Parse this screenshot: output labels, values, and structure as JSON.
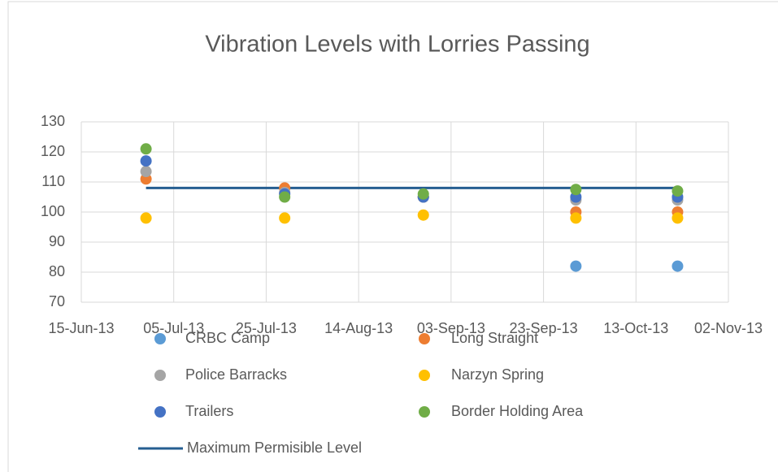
{
  "chart_data": {
    "type": "scatter",
    "title": "Vibration Levels with Lorries Passing",
    "x": [
      "2013-06-29",
      "2013-07-29",
      "2013-08-28",
      "2013-09-30",
      "2013-10-22"
    ],
    "series": [
      {
        "name": "Maximum Permisible Level",
        "color": "#255e91",
        "line": true,
        "values": [
          108,
          108,
          108,
          108,
          108
        ]
      },
      {
        "name": "CRBC Camp",
        "color": "#5b9bd5",
        "values": [
          null,
          null,
          null,
          82,
          82
        ]
      },
      {
        "name": "Long Straight",
        "color": "#ed7d31",
        "values": [
          111,
          108,
          105,
          100,
          100
        ]
      },
      {
        "name": "Police Barracks",
        "color": "#a5a5a5",
        "values": [
          113.5,
          106.5,
          105,
          104,
          104
        ]
      },
      {
        "name": "Narzyn Spring",
        "color": "#ffc000",
        "values": [
          98,
          98,
          99,
          98,
          98
        ]
      },
      {
        "name": "Trailers",
        "color": "#4472c4",
        "values": [
          117,
          106,
          105,
          105,
          105
        ]
      },
      {
        "name": "Border Holding Area",
        "color": "#70ad47",
        "values": [
          121,
          105,
          106,
          107.5,
          107
        ]
      }
    ],
    "xlim": [
      "2013-06-15",
      "2013-11-02"
    ],
    "xticks": [
      {
        "value": "2013-06-15",
        "label": "15-Jun-13"
      },
      {
        "value": "2013-07-05",
        "label": "05-Jul-13"
      },
      {
        "value": "2013-07-25",
        "label": "25-Jul-13"
      },
      {
        "value": "2013-08-14",
        "label": "14-Aug-13"
      },
      {
        "value": "2013-09-03",
        "label": "03-Sep-13"
      },
      {
        "value": "2013-09-23",
        "label": "23-Sep-13"
      },
      {
        "value": "2013-10-13",
        "label": "13-Oct-13"
      },
      {
        "value": "2013-11-02",
        "label": "02-Nov-13"
      }
    ],
    "ylim": [
      70,
      130
    ],
    "yticks": [
      70,
      80,
      90,
      100,
      110,
      120,
      130
    ],
    "grid": true
  }
}
